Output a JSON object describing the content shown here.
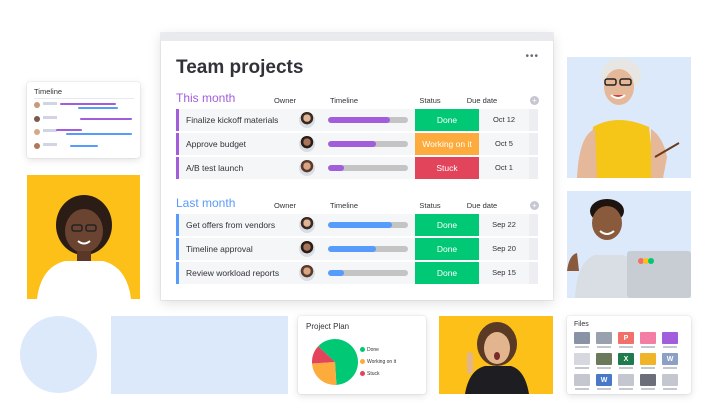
{
  "colors": {
    "done": "#00c875",
    "working": "#fdab3d",
    "stuck": "#e2445c",
    "this_month": "#a25ddc",
    "last_month": "#579bfc",
    "yellow_bg": "#fcc018",
    "light_blue_bg": "#dce9fb"
  },
  "timeline_card": {
    "title": "Timeline"
  },
  "board": {
    "title": "Team projects",
    "menu_icon": "more-dots-icon",
    "columns": {
      "owner": "Owner",
      "timeline": "Timeline",
      "status": "Status",
      "due_date": "Due date"
    },
    "groups": [
      {
        "title": "This month",
        "color": "#a25ddc",
        "rows": [
          {
            "name": "Finalize kickoff materials",
            "timeline_progress": 0.78,
            "status": "Done",
            "status_color": "#00c875",
            "due": "Oct 12"
          },
          {
            "name": "Approve budget",
            "timeline_progress": 0.6,
            "status": "Working on it",
            "status_color": "#fdab3d",
            "due": "Oct 5"
          },
          {
            "name": "A/B test launch",
            "timeline_progress": 0.2,
            "status": "Stuck",
            "status_color": "#e2445c",
            "due": "Oct 1"
          }
        ]
      },
      {
        "title": "Last month",
        "color": "#579bfc",
        "rows": [
          {
            "name": "Get offers from vendors",
            "timeline_progress": 0.8,
            "status": "Done",
            "status_color": "#00c875",
            "due": "Sep 22"
          },
          {
            "name": "Timeline approval",
            "timeline_progress": 0.6,
            "status": "Done",
            "status_color": "#00c875",
            "due": "Sep 20"
          },
          {
            "name": "Review workload reports",
            "timeline_progress": 0.2,
            "status": "Done",
            "status_color": "#00c875",
            "due": "Sep 15"
          }
        ]
      }
    ]
  },
  "pie_card": {
    "title": "Project Plan",
    "legend": [
      {
        "label": "Done",
        "color": "#00c875"
      },
      {
        "label": "Working on it",
        "color": "#fdab3d"
      },
      {
        "label": "Stuck",
        "color": "#e2445c"
      }
    ]
  },
  "chart_data": {
    "type": "pie",
    "title": "Project Plan",
    "categories": [
      "Done",
      "Working on it",
      "Stuck"
    ],
    "values": [
      62,
      25,
      13
    ]
  },
  "files_card": {
    "title": "Files",
    "files": [
      {
        "icon": "image-file-icon",
        "letter": "",
        "color": "#8a93a6"
      },
      {
        "icon": "pdf-file-icon",
        "letter": "",
        "color": "#9aa1ae"
      },
      {
        "icon": "powerpoint-file-icon",
        "letter": "P",
        "color": "#f2706a"
      },
      {
        "icon": "image-file-icon",
        "letter": "",
        "color": "#f47ea3"
      },
      {
        "icon": "video-file-icon",
        "letter": "",
        "color": "#a25ddc"
      },
      {
        "icon": "pdf-file-icon",
        "letter": "",
        "color": "#d5d8df"
      },
      {
        "icon": "image-file-icon",
        "letter": "",
        "color": "#6b7a5a"
      },
      {
        "icon": "excel-file-icon",
        "letter": "X",
        "color": "#1f7a4d"
      },
      {
        "icon": "image-file-icon",
        "letter": "",
        "color": "#f0b429"
      },
      {
        "icon": "word-file-icon",
        "letter": "W",
        "color": "#8c9fc4"
      },
      {
        "icon": "pdf-file-icon",
        "letter": "",
        "color": "#c5c7d0"
      },
      {
        "icon": "word-file-icon",
        "letter": "W",
        "color": "#4a78c9"
      },
      {
        "icon": "pdf-file-icon",
        "letter": "",
        "color": "#c5c7d0"
      },
      {
        "icon": "image-file-icon",
        "letter": "",
        "color": "#6c6f7a"
      },
      {
        "icon": "pdf-file-icon",
        "letter": "",
        "color": "#c5c7d0"
      }
    ]
  }
}
